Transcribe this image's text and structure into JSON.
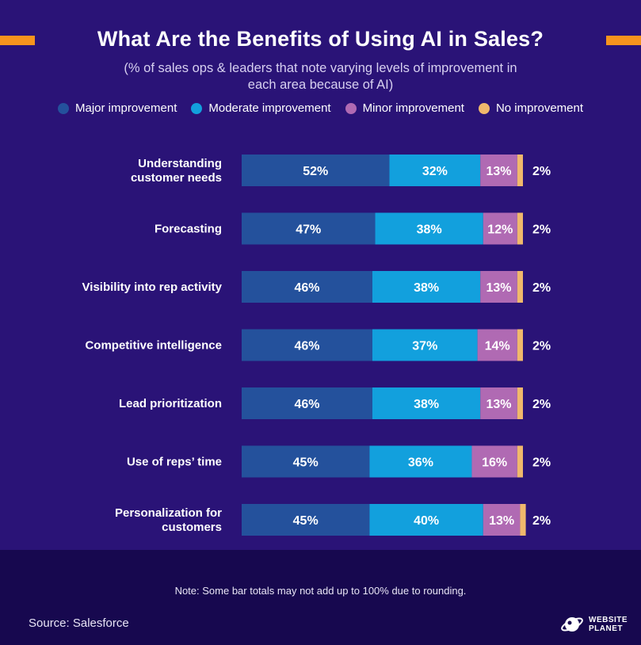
{
  "header": {
    "title": "What Are the Benefits of Using AI in Sales?",
    "subtitle": "(% of sales ops & leaders that note varying levels of improvement in each area because of AI)"
  },
  "colors": {
    "background": "#2a1377",
    "bottom_band": "#17084f",
    "accent": "#f7941d"
  },
  "chart_data": {
    "type": "bar",
    "orientation": "horizontal",
    "stacked": true,
    "categories": [
      [
        "Understanding",
        "customer needs"
      ],
      [
        "Forecasting"
      ],
      [
        "Visibility into rep activity"
      ],
      [
        "Competitive intelligence"
      ],
      [
        "Lead prioritization"
      ],
      [
        "Use of reps’ time"
      ],
      [
        "Personalization for",
        "customers"
      ]
    ],
    "series": [
      {
        "name": "Major improvement",
        "color": "#24519c",
        "values": [
          52,
          47,
          46,
          46,
          46,
          45,
          45
        ]
      },
      {
        "name": "Moderate improvement",
        "color": "#12a0dd",
        "values": [
          32,
          38,
          38,
          37,
          38,
          36,
          40
        ]
      },
      {
        "name": "Minor improvement",
        "color": "#b06ab3",
        "values": [
          13,
          12,
          13,
          14,
          13,
          16,
          13
        ]
      },
      {
        "name": "No improvement",
        "color": "#f0b86c",
        "values": [
          2,
          2,
          2,
          2,
          2,
          2,
          2
        ]
      }
    ],
    "value_suffix": "%",
    "legend_position": "top",
    "grid": false,
    "xlim": [
      0,
      100
    ]
  },
  "footer": {
    "note": "Note: Some bar totals may not add up to 100% due to rounding.",
    "source": "Source: Salesforce",
    "logo_line1": "WEBSITE",
    "logo_line2": "PLANET"
  }
}
